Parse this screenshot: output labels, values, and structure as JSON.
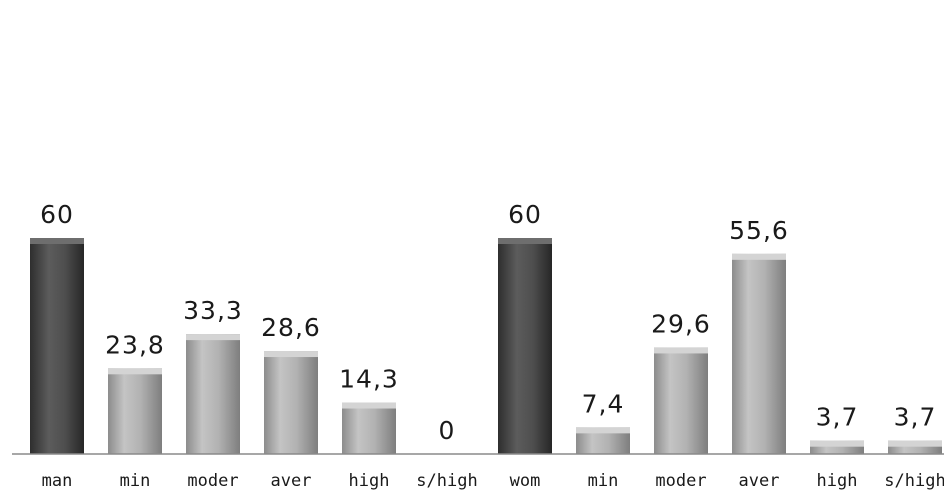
{
  "chart_data": {
    "type": "bar",
    "title": "",
    "xlabel": "",
    "ylabel": "",
    "categories": [
      "man",
      "min",
      "moder",
      "aver",
      "high",
      "s/high",
      "wom",
      "min",
      "moder",
      "aver",
      "high",
      "s/high"
    ],
    "values": [
      60,
      23.8,
      33.3,
      28.6,
      14.3,
      0,
      60,
      7.4,
      29.6,
      55.6,
      3.7,
      3.7
    ],
    "value_labels": [
      "60",
      "23,8",
      "33,3",
      "28,6",
      "14,3",
      "0",
      "60",
      "7,4",
      "29,6",
      "55,6",
      "3,7",
      "3,7"
    ],
    "ylim": [
      0,
      60
    ],
    "grid": false,
    "legend": "none",
    "colors": {
      "dark_bar": "#4a4a4a",
      "light_bar": "#a9a9a9",
      "dark_bar_indices": [
        0,
        6
      ]
    }
  }
}
